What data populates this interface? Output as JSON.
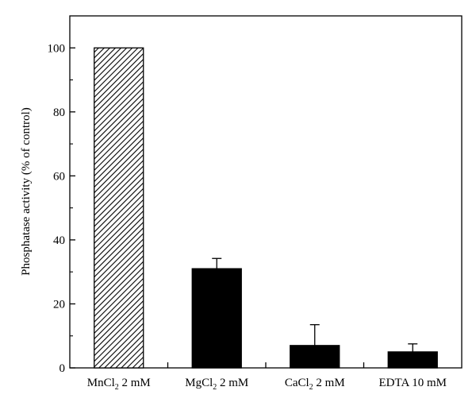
{
  "chart_data": {
    "type": "bar",
    "title": "",
    "xlabel": "",
    "ylabel": "Phosphatase activity (% of control)",
    "ylim": [
      0,
      110
    ],
    "yticks": [
      0,
      20,
      40,
      60,
      80,
      100
    ],
    "categories": [
      {
        "base": "MnCl",
        "sub": "2",
        "rest": " 2 mM"
      },
      {
        "base": "MgCl",
        "sub": "2",
        "rest": " 2 mM"
      },
      {
        "base": "CaCl",
        "sub": "2",
        "rest": " 2 mM"
      },
      {
        "base": "EDTA 10 mM",
        "sub": "",
        "rest": ""
      }
    ],
    "values": [
      100,
      31,
      7,
      5
    ],
    "errors": [
      0,
      3.2,
      6.5,
      2.5
    ],
    "fills": [
      "hatched",
      "solid",
      "solid",
      "solid"
    ],
    "bar_color": "#000000",
    "grid": false,
    "legend": "none"
  }
}
